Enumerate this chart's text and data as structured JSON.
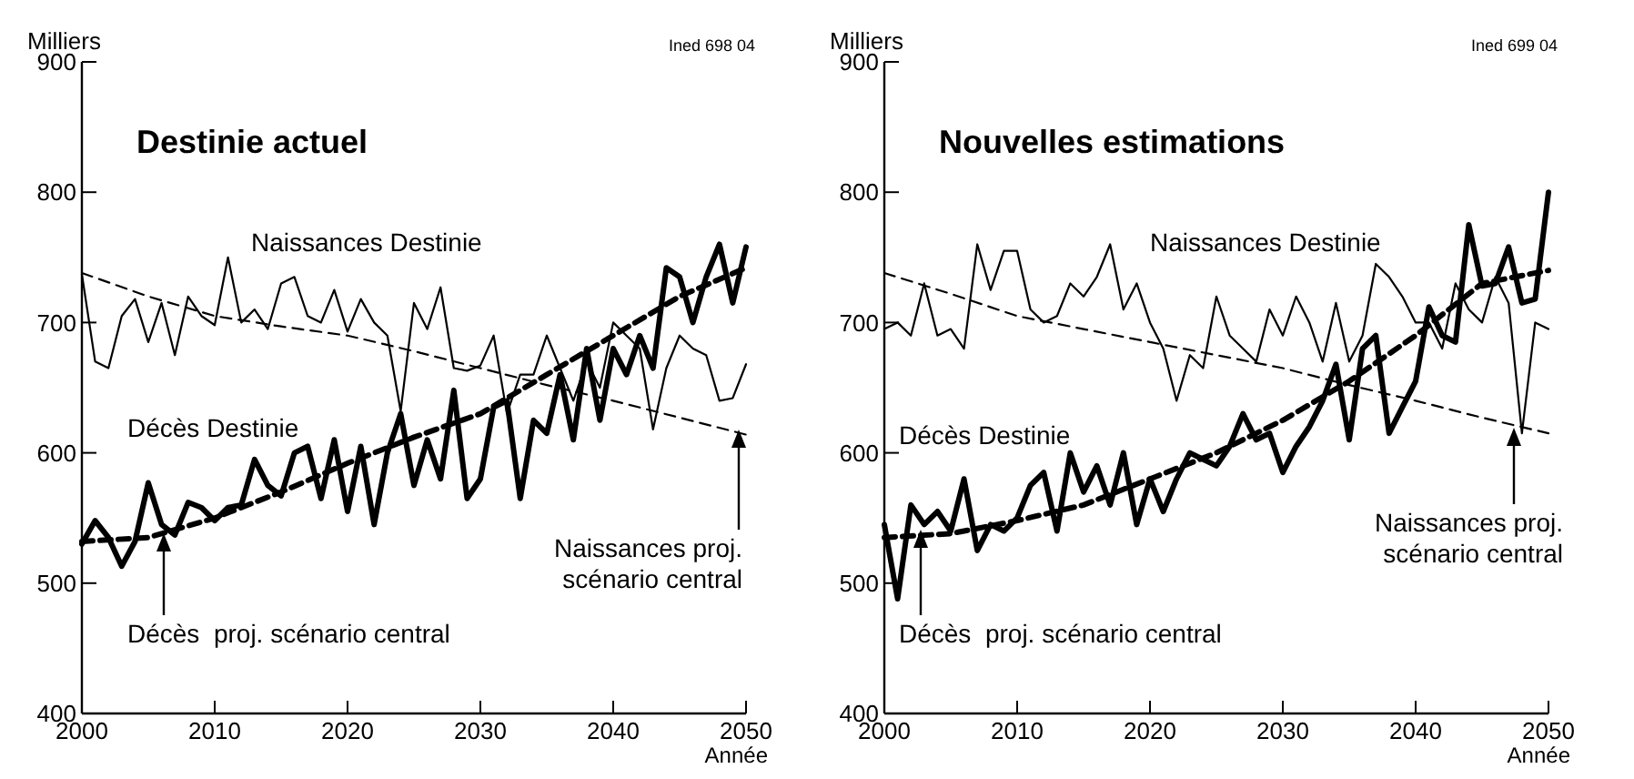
{
  "chart_data": [
    {
      "type": "line",
      "title": "Destinie actuel",
      "ylabel": "Milliers",
      "xlabel": "Année",
      "annotations": [
        "Ined 698 04"
      ],
      "xlim": [
        2000,
        2050
      ],
      "xticks": [
        2000,
        2010,
        2020,
        2030,
        2040,
        2050
      ],
      "ylim": [
        400,
        900
      ],
      "yticks": [
        400,
        500,
        600,
        700,
        800,
        900
      ],
      "grid": false,
      "legend": false,
      "marker": "none",
      "x": [
        2000,
        2001,
        2002,
        2003,
        2004,
        2005,
        2006,
        2007,
        2008,
        2009,
        2010,
        2011,
        2012,
        2013,
        2014,
        2015,
        2016,
        2017,
        2018,
        2019,
        2020,
        2021,
        2022,
        2023,
        2024,
        2025,
        2026,
        2027,
        2028,
        2029,
        2030,
        2031,
        2032,
        2033,
        2034,
        2035,
        2036,
        2037,
        2038,
        2039,
        2040,
        2041,
        2042,
        2043,
        2044,
        2045,
        2046,
        2047,
        2048,
        2049,
        2050
      ],
      "series": [
        {
          "name": "Naissances Destinie",
          "color": "#000000",
          "line_style": "solid",
          "values": [
            737,
            670,
            665,
            705,
            718,
            685,
            715,
            675,
            720,
            705,
            698,
            750,
            700,
            710,
            695,
            730,
            735,
            705,
            700,
            725,
            693,
            718,
            700,
            690,
            632,
            715,
            695,
            727,
            665,
            663,
            667,
            690,
            630,
            660,
            660,
            690,
            665,
            640,
            670,
            650,
            700,
            690,
            680,
            618,
            665,
            690,
            680,
            675,
            640,
            642,
            668
          ]
        },
        {
          "name": "Décès Destinie",
          "color": "#000000",
          "line_style": "solid",
          "values": [
            530,
            548,
            535,
            513,
            532,
            577,
            545,
            537,
            562,
            558,
            548,
            558,
            560,
            595,
            575,
            567,
            600,
            605,
            565,
            610,
            555,
            605,
            545,
            600,
            630,
            575,
            610,
            580,
            648,
            565,
            580,
            635,
            640,
            565,
            625,
            615,
            660,
            610,
            680,
            625,
            680,
            660,
            690,
            665,
            742,
            735,
            700,
            735,
            760,
            715,
            758
          ]
        },
        {
          "name": "Naissances proj. scénario central",
          "color": "#000000",
          "line_style": "dashed",
          "x": [
            2000,
            2005,
            2010,
            2015,
            2020,
            2025,
            2030,
            2035,
            2040,
            2045,
            2050
          ],
          "values": [
            738,
            720,
            705,
            697,
            690,
            678,
            665,
            652,
            640,
            627,
            614
          ]
        },
        {
          "name": "Décès  proj. scénario central",
          "color": "#000000",
          "line_style": "dashed",
          "x": [
            2000,
            2005,
            2010,
            2015,
            2020,
            2025,
            2030,
            2035,
            2040,
            2045,
            2050
          ],
          "values": [
            532,
            535,
            550,
            570,
            592,
            612,
            630,
            660,
            690,
            720,
            742
          ]
        }
      ]
    },
    {
      "type": "line",
      "title": "Nouvelles estimations",
      "ylabel": "Milliers",
      "xlabel": "Année",
      "annotations": [
        "Ined 699 04"
      ],
      "xlim": [
        2000,
        2050
      ],
      "xticks": [
        2000,
        2010,
        2020,
        2030,
        2040,
        2050
      ],
      "ylim": [
        400,
        900
      ],
      "yticks": [
        400,
        500,
        600,
        700,
        800,
        900
      ],
      "grid": false,
      "legend": false,
      "marker": "none",
      "x": [
        2000,
        2001,
        2002,
        2003,
        2004,
        2005,
        2006,
        2007,
        2008,
        2009,
        2010,
        2011,
        2012,
        2013,
        2014,
        2015,
        2016,
        2017,
        2018,
        2019,
        2020,
        2021,
        2022,
        2023,
        2024,
        2025,
        2026,
        2027,
        2028,
        2029,
        2030,
        2031,
        2032,
        2033,
        2034,
        2035,
        2036,
        2037,
        2038,
        2039,
        2040,
        2041,
        2042,
        2043,
        2044,
        2045,
        2046,
        2047,
        2048,
        2049,
        2050
      ],
      "series": [
        {
          "name": "Naissances Destinie",
          "color": "#000000",
          "line_style": "solid",
          "values": [
            695,
            700,
            690,
            730,
            690,
            695,
            680,
            760,
            725,
            755,
            755,
            710,
            700,
            705,
            730,
            720,
            735,
            760,
            710,
            730,
            700,
            680,
            640,
            675,
            665,
            720,
            690,
            680,
            670,
            710,
            690,
            720,
            700,
            670,
            715,
            670,
            690,
            745,
            735,
            720,
            700,
            700,
            680,
            730,
            710,
            700,
            735,
            715,
            615,
            700,
            695
          ]
        },
        {
          "name": "Décès Destinie",
          "color": "#000000",
          "line_style": "solid",
          "values": [
            545,
            488,
            560,
            545,
            555,
            540,
            580,
            525,
            545,
            540,
            550,
            575,
            585,
            540,
            600,
            570,
            590,
            560,
            600,
            545,
            580,
            555,
            580,
            600,
            595,
            590,
            605,
            630,
            610,
            615,
            585,
            605,
            620,
            640,
            668,
            610,
            680,
            690,
            615,
            635,
            655,
            712,
            690,
            685,
            775,
            728,
            730,
            758,
            715,
            718,
            800
          ]
        },
        {
          "name": "Naissances proj. scénario central",
          "color": "#000000",
          "line_style": "dashed",
          "x": [
            2000,
            2005,
            2010,
            2015,
            2020,
            2025,
            2030,
            2035,
            2040,
            2045,
            2050
          ],
          "values": [
            738,
            722,
            705,
            695,
            685,
            675,
            665,
            652,
            640,
            627,
            615
          ]
        },
        {
          "name": "Décès  proj. scénario central",
          "color": "#000000",
          "line_style": "dashed",
          "x": [
            2000,
            2005,
            2010,
            2015,
            2020,
            2025,
            2030,
            2035,
            2040,
            2045,
            2050
          ],
          "values": [
            535,
            538,
            548,
            560,
            580,
            600,
            625,
            655,
            690,
            730,
            740
          ]
        }
      ]
    }
  ]
}
